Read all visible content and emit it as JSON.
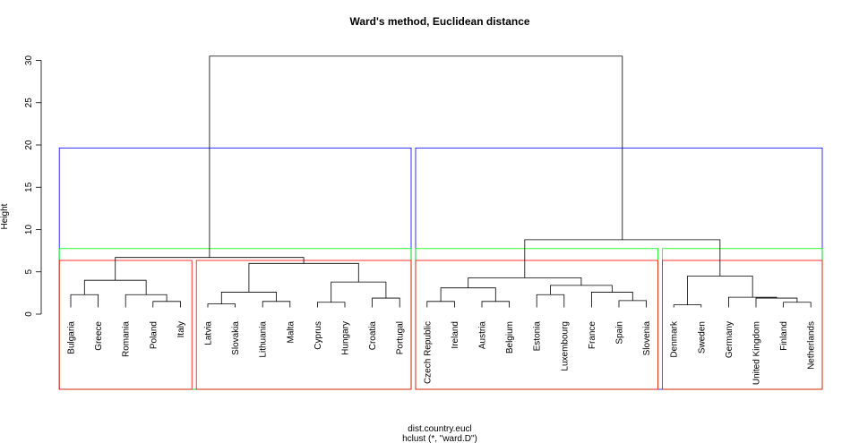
{
  "chart_data": {
    "type": "dendrogram",
    "title": "Ward's method, Euclidean distance",
    "ylabel": "Height",
    "xlabel": "dist.country.eucl",
    "sub": "hclust (*, \"ward.D\")",
    "ylim": [
      0,
      32
    ],
    "yticks": [
      0,
      5,
      10,
      15,
      20,
      25,
      30
    ],
    "leaves": [
      "Bulgaria",
      "Greece",
      "Romania",
      "Poland",
      "Italy",
      "Latvia",
      "Slovakia",
      "Lithuania",
      "Malta",
      "Cyprus",
      "Hungary",
      "Croatia",
      "Portugal",
      "Czech Republic",
      "Ireland",
      "Austria",
      "Belgium",
      "Estonia",
      "Luxembourg",
      "France",
      "Spain",
      "Slovenia",
      "Denmark",
      "Sweden",
      "Germany",
      "United Kingdom",
      "Finland",
      "Netherlands"
    ],
    "merges": [
      {
        "id": "bg_gr",
        "a": "Bulgaria",
        "b": "Greece",
        "h": 2.3
      },
      {
        "id": "pl_it",
        "a": "Poland",
        "b": "Italy",
        "h": 1.5
      },
      {
        "id": "ro_pi",
        "a": "Romania",
        "b": "pl_it",
        "h": 2.3
      },
      {
        "id": "c1",
        "a": "bg_gr",
        "b": "ro_pi",
        "h": 4.0
      },
      {
        "id": "lv_sk",
        "a": "Latvia",
        "b": "Slovakia",
        "h": 1.2
      },
      {
        "id": "lt_mt",
        "a": "Lithuania",
        "b": "Malta",
        "h": 1.5
      },
      {
        "id": "c2a",
        "a": "lv_sk",
        "b": "lt_mt",
        "h": 2.6
      },
      {
        "id": "cy_hu",
        "a": "Cyprus",
        "b": "Hungary",
        "h": 1.4
      },
      {
        "id": "hr_pt",
        "a": "Croatia",
        "b": "Portugal",
        "h": 1.9
      },
      {
        "id": "c2b",
        "a": "cy_hu",
        "b": "hr_pt",
        "h": 3.8
      },
      {
        "id": "c2",
        "a": "c2a",
        "b": "c2b",
        "h": 6.0
      },
      {
        "id": "left",
        "a": "c1",
        "b": "c2",
        "h": 6.7
      },
      {
        "id": "cz_ie",
        "a": "Czech Republic",
        "b": "Ireland",
        "h": 1.5
      },
      {
        "id": "at_be",
        "a": "Austria",
        "b": "Belgium",
        "h": 1.5
      },
      {
        "id": "c3a",
        "a": "cz_ie",
        "b": "at_be",
        "h": 3.1
      },
      {
        "id": "ee_lu",
        "a": "Estonia",
        "b": "Luxembourg",
        "h": 2.3
      },
      {
        "id": "es_si",
        "a": "Spain",
        "b": "Slovenia",
        "h": 1.6
      },
      {
        "id": "fr_es",
        "a": "France",
        "b": "es_si",
        "h": 2.6
      },
      {
        "id": "c3b",
        "a": "ee_lu",
        "b": "fr_es",
        "h": 3.4
      },
      {
        "id": "c3",
        "a": "c3a",
        "b": "c3b",
        "h": 4.3
      },
      {
        "id": "dk_se",
        "a": "Denmark",
        "b": "Sweden",
        "h": 1.1
      },
      {
        "id": "fi_nl",
        "a": "Finland",
        "b": "Netherlands",
        "h": 1.4
      },
      {
        "id": "uk_fn",
        "a": "United Kingdom",
        "b": "fi_nl",
        "h": 1.9
      },
      {
        "id": "de_uk",
        "a": "Germany",
        "b": "uk_fn",
        "h": 2.0
      },
      {
        "id": "c4",
        "a": "dk_se",
        "b": "de_uk",
        "h": 4.5
      },
      {
        "id": "right",
        "a": "c3",
        "b": "c4",
        "h": 8.8
      },
      {
        "id": "root",
        "a": "left",
        "b": "right",
        "h": 30.5
      }
    ],
    "rect_groups": [
      {
        "k": 2,
        "color": "#0000ff",
        "clusters": [
          [
            0,
            12
          ],
          [
            13,
            27
          ]
        ]
      },
      {
        "k": 3,
        "color": "#00ff00",
        "clusters": [
          [
            0,
            12
          ],
          [
            13,
            21
          ],
          [
            22,
            27
          ]
        ]
      },
      {
        "k": 4,
        "color": "#ff0000",
        "clusters": [
          [
            0,
            4
          ],
          [
            5,
            12
          ],
          [
            13,
            21
          ],
          [
            22,
            27
          ]
        ]
      }
    ],
    "line_color": "#000000"
  }
}
